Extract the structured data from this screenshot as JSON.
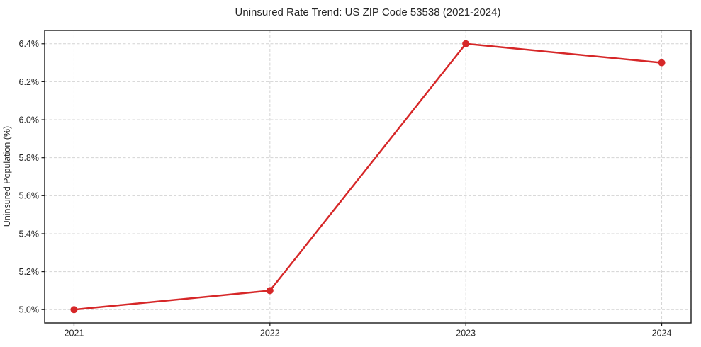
{
  "chart_data": {
    "type": "line",
    "title": "Uninsured Rate Trend: US ZIP Code 53538 (2021-2024)",
    "ylabel": "Uninsured Population (%)",
    "xlabel": "",
    "x": [
      2021,
      2022,
      2023,
      2024
    ],
    "xtick_labels": [
      "2021",
      "2022",
      "2023",
      "2024"
    ],
    "values": [
      5.0,
      5.1,
      6.4,
      6.3
    ],
    "yticks": [
      5.0,
      5.2,
      5.4,
      5.6,
      5.8,
      6.0,
      6.2,
      6.4
    ],
    "ytick_labels": [
      "5.0%",
      "5.2%",
      "5.4%",
      "5.6%",
      "5.8%",
      "6.0%",
      "6.2%",
      "6.4%"
    ],
    "xlim": [
      2020.85,
      2024.15
    ],
    "ylim": [
      4.93,
      6.47
    ],
    "grid": true,
    "grid_style": "dashed",
    "legend": "none",
    "colors": {
      "line": "#d62728",
      "marker": "#d62728",
      "grid": "#d4d4d4",
      "axis": "#1a1a1a",
      "text": "#262626",
      "background": "#ffffff"
    }
  }
}
